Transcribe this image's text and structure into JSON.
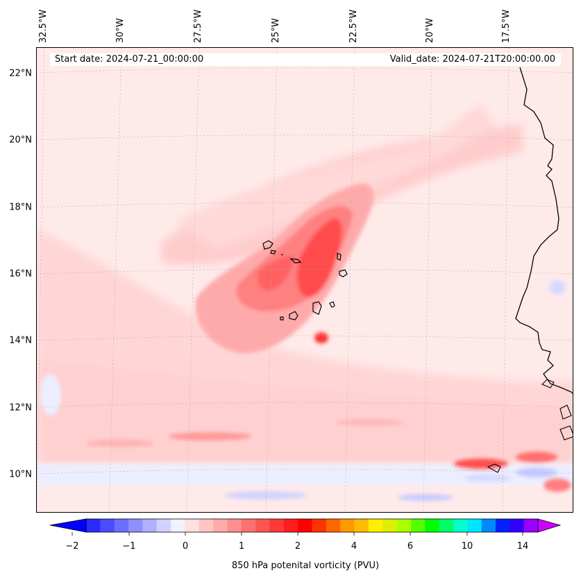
{
  "map": {
    "start_date": "Start date: 2024-07-21_00:00:00",
    "valid_date": "Valid_date: 2024-07-21T20:00:00.00",
    "field": "850 hPa potential vorticity",
    "lon_labels": [
      "32.5°W",
      "30°W",
      "27.5°W",
      "25°W",
      "22.5°W",
      "20°W",
      "17.5°W"
    ],
    "lat_labels": [
      "22°N",
      "20°N",
      "18°N",
      "16°N",
      "14°N",
      "12°N",
      "10°N"
    ],
    "colors": {
      "background": "#ffeaea",
      "light_pink": "#ffcccc",
      "pink": "#ff9999",
      "red": "#ff4444",
      "deep_red": "#ff2222",
      "light_blue": "#e8eaff",
      "blue": "#c4c8ff",
      "coastline": "#000000"
    }
  },
  "colorbar": {
    "label": "850 hPa potenital vorticity (PVU)",
    "ticks": [
      "−2",
      "−1",
      "0",
      "1",
      "2",
      "4",
      "6",
      "10",
      "14"
    ],
    "colors": [
      "#0000ff",
      "#2a2aff",
      "#4b4bff",
      "#6d6dff",
      "#8f8fff",
      "#b0b0ff",
      "#d2d2ff",
      "#f0f0ff",
      "#ffe0e0",
      "#ffc4c4",
      "#ffaaaa",
      "#ff8e8e",
      "#ff7070",
      "#ff5454",
      "#ff3838",
      "#ff1c1c",
      "#ff0000",
      "#ff3300",
      "#ff6600",
      "#ff9900",
      "#ffbb00",
      "#ffee00",
      "#ddf000",
      "#aaff00",
      "#55ff00",
      "#00ff00",
      "#00ff66",
      "#00ffcc",
      "#00e5ff",
      "#0088ff",
      "#0022ff",
      "#3300ff",
      "#9900ff",
      "#cc00ff"
    ]
  }
}
